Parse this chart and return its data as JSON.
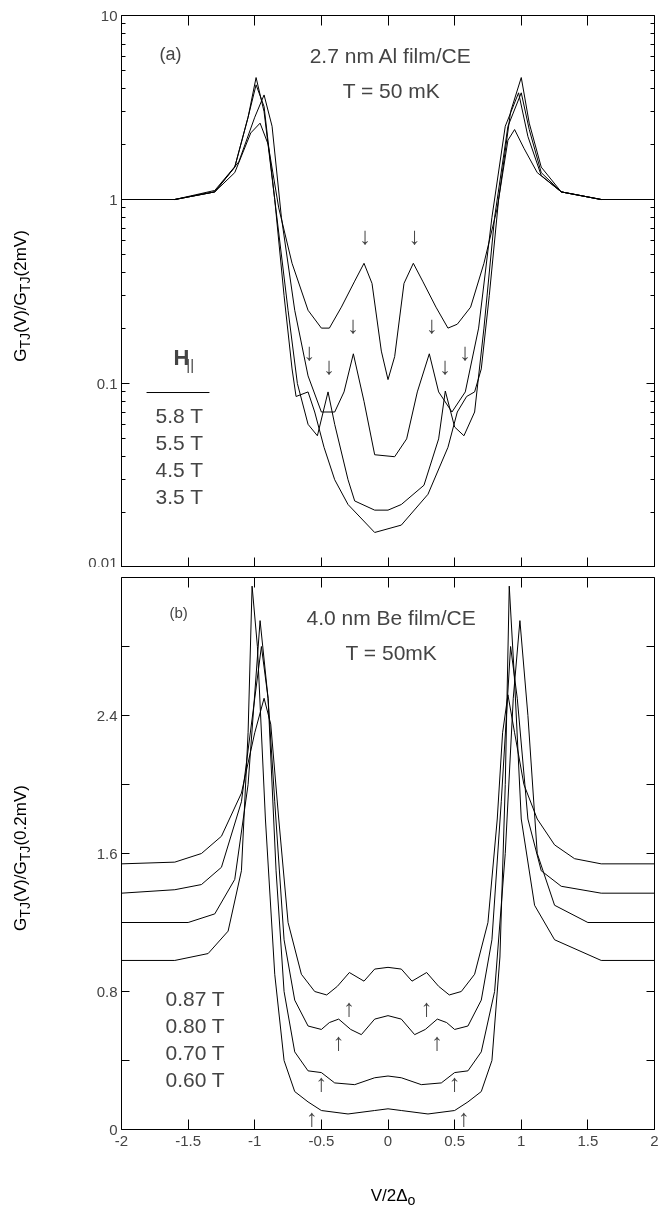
{
  "chart_data": [
    {
      "type": "line",
      "title": "2.7 nm Al film/CE",
      "subtitle": "T = 50 mK",
      "ylabel": "G$_{TJ}$(V)/G$_{TJ}$(2mV)",
      "log": "y",
      "grid": false,
      "tick_labels": "y",
      "marker": "none",
      "line_style": "solid",
      "xlim": [
        -2,
        2
      ],
      "xticks": [
        -2,
        -1.5,
        -1,
        -0.5,
        0,
        0.5,
        1,
        1.5,
        2
      ],
      "ylim": [
        0.01,
        10
      ],
      "yticks": [
        0.01,
        0.1,
        1,
        10
      ],
      "series": [
        {
          "color": "#000000",
          "x": [
            -2,
            -1.6,
            -1.3,
            -1.15,
            -1.03,
            -0.96,
            -0.9,
            -0.82,
            -0.72,
            -0.6,
            -0.5,
            -0.44,
            -0.35,
            -0.25,
            -0.18,
            -0.12,
            -0.05,
            0,
            0.05,
            0.12,
            0.19,
            0.26,
            0.36,
            0.45,
            0.52,
            0.62,
            0.72,
            0.82,
            0.9,
            0.95,
            1.02,
            1.12,
            1.3,
            1.6,
            2
          ],
          "values": [
            1,
            1,
            1.1,
            1.4,
            2.3,
            2.6,
            2.0,
            0.9,
            0.45,
            0.25,
            0.2,
            0.2,
            0.26,
            0.36,
            0.45,
            0.35,
            0.15,
            0.105,
            0.14,
            0.35,
            0.45,
            0.36,
            0.26,
            0.2,
            0.21,
            0.26,
            0.45,
            0.9,
            2.1,
            2.4,
            1.9,
            1.4,
            1.1,
            1,
            1
          ]
        },
        {
          "color": "#000000",
          "x": [
            -2,
            -1.6,
            -1.3,
            -1.12,
            -1.0,
            -0.93,
            -0.87,
            -0.8,
            -0.7,
            -0.6,
            -0.5,
            -0.4,
            -0.33,
            -0.26,
            -0.18,
            -0.1,
            0.05,
            0.14,
            0.22,
            0.31,
            0.38,
            0.48,
            0.58,
            0.68,
            0.78,
            0.88,
            0.98,
            1.05,
            1.15,
            1.3,
            1.6,
            2
          ],
          "values": [
            1,
            1,
            1.12,
            1.6,
            2.8,
            3.7,
            2.5,
            0.8,
            0.25,
            0.11,
            0.07,
            0.07,
            0.09,
            0.145,
            0.08,
            0.041,
            0.04,
            0.05,
            0.09,
            0.145,
            0.09,
            0.07,
            0.09,
            0.2,
            0.8,
            2.5,
            3.8,
            2.2,
            1.35,
            1.1,
            1,
            1
          ]
        },
        {
          "color": "#000000",
          "x": [
            -2,
            -1.6,
            -1.3,
            -1.15,
            -1.05,
            -0.99,
            -0.93,
            -0.85,
            -0.75,
            -0.68,
            -0.6,
            -0.53,
            -0.45,
            -0.4,
            -0.3,
            -0.25,
            -0.1,
            0,
            0.1,
            0.27,
            0.38,
            0.43,
            0.5,
            0.57,
            0.65,
            0.72,
            0.8,
            0.9,
            1.0,
            1.06,
            1.15,
            1.3,
            1.6,
            2
          ],
          "values": [
            1,
            1,
            1.1,
            1.5,
            2.8,
            4.2,
            3.2,
            1.0,
            0.25,
            0.1,
            0.06,
            0.052,
            0.09,
            0.06,
            0.03,
            0.023,
            0.0205,
            0.0205,
            0.022,
            0.028,
            0.05,
            0.091,
            0.058,
            0.052,
            0.07,
            0.2,
            0.8,
            2.5,
            3.8,
            2.4,
            1.4,
            1.1,
            1,
            1
          ]
        },
        {
          "color": "#000000",
          "x": [
            -2,
            -1.6,
            -1.3,
            -1.15,
            -1.05,
            -0.99,
            -0.93,
            -0.85,
            -0.78,
            -0.72,
            -0.69,
            -0.6,
            -0.55,
            -0.48,
            -0.4,
            -0.3,
            -0.1,
            0.1,
            0.3,
            0.45,
            0.52,
            0.59,
            0.65,
            0.7,
            0.76,
            0.83,
            0.92,
            1.0,
            1.06,
            1.15,
            1.3,
            1.6,
            2
          ],
          "values": [
            1,
            1,
            1.1,
            1.5,
            2.8,
            4.6,
            3.0,
            1.0,
            0.3,
            0.12,
            0.085,
            0.09,
            0.07,
            0.045,
            0.03,
            0.022,
            0.0155,
            0.017,
            0.025,
            0.045,
            0.07,
            0.085,
            0.09,
            0.12,
            0.3,
            1.0,
            3.0,
            4.6,
            2.6,
            1.5,
            1.1,
            1,
            1
          ]
        }
      ],
      "annotations": [
        "(a)",
        "H$_{||}$",
        "5.8 T",
        "5.5 T",
        "4.5 T",
        "3.5 T",
        "↓",
        "↓",
        "↓",
        "↓",
        "↓",
        "↓",
        "↓",
        "↓"
      ]
    },
    {
      "type": "line",
      "title": "4.0 nm Be film/CE",
      "subtitle": "T = 50mK",
      "xlabel": "V/2Δ$_{o}$",
      "ylabel": "G$_{TJ}$(V)/G$_{TJ}$(0.2mV)",
      "grid": false,
      "marker": "none",
      "line_style": "solid",
      "xlim": [
        -2,
        2
      ],
      "xticks": [
        -2,
        -1.5,
        -1,
        -0.5,
        0,
        0.5,
        1,
        1.5,
        2
      ],
      "ylim": [
        0,
        3.2
      ],
      "yticks": [
        0,
        {
          "value": 0.4,
          "label": null
        },
        0.8,
        {
          "value": 1.2,
          "label": null
        },
        1.6,
        {
          "value": 2.0,
          "label": null
        },
        2.4,
        {
          "value": 2.8,
          "label": null
        }
      ],
      "series": [
        {
          "color": "#000000",
          "x": [
            -2,
            -1.6,
            -1.4,
            -1.25,
            -1.1,
            -1.0,
            -0.93,
            -0.88,
            -0.82,
            -0.75,
            -0.65,
            -0.55,
            -0.46,
            -0.38,
            -0.29,
            -0.18,
            -0.1,
            0,
            0.1,
            0.18,
            0.29,
            0.38,
            0.46,
            0.55,
            0.65,
            0.75,
            0.82,
            0.86,
            0.9,
            0.95,
            1.02,
            1.12,
            1.25,
            1.4,
            1.6,
            2
          ],
          "values": [
            1.54,
            1.55,
            1.6,
            1.7,
            1.95,
            2.3,
            2.5,
            2.35,
            1.8,
            1.2,
            0.9,
            0.8,
            0.78,
            0.83,
            0.91,
            0.86,
            0.93,
            0.94,
            0.93,
            0.86,
            0.91,
            0.83,
            0.78,
            0.8,
            0.9,
            1.2,
            1.8,
            2.3,
            2.52,
            2.3,
            2.0,
            1.8,
            1.65,
            1.57,
            1.54,
            1.54
          ]
        },
        {
          "color": "#000000",
          "x": [
            -2,
            -1.6,
            -1.4,
            -1.25,
            -1.1,
            -1.0,
            -0.95,
            -0.9,
            -0.85,
            -0.78,
            -0.7,
            -0.6,
            -0.5,
            -0.44,
            -0.37,
            -0.28,
            -0.2,
            -0.1,
            0,
            0.1,
            0.2,
            0.28,
            0.37,
            0.44,
            0.5,
            0.6,
            0.7,
            0.78,
            0.85,
            0.92,
            0.97,
            1.05,
            1.15,
            1.3,
            1.6,
            2
          ],
          "values": [
            1.37,
            1.39,
            1.42,
            1.52,
            1.9,
            2.5,
            2.8,
            2.5,
            1.9,
            1.1,
            0.75,
            0.6,
            0.58,
            0.62,
            0.64,
            0.58,
            0.55,
            0.64,
            0.66,
            0.64,
            0.55,
            0.58,
            0.64,
            0.62,
            0.58,
            0.6,
            0.75,
            1.1,
            1.9,
            2.8,
            2.5,
            1.8,
            1.5,
            1.41,
            1.37,
            1.37
          ]
        },
        {
          "color": "#000000",
          "x": [
            -2,
            -1.5,
            -1.3,
            -1.15,
            -1.05,
            -0.96,
            -0.9,
            -0.84,
            -0.78,
            -0.7,
            -0.6,
            -0.5,
            -0.4,
            -0.25,
            -0.1,
            0,
            0.1,
            0.25,
            0.4,
            0.5,
            0.6,
            0.7,
            0.8,
            0.88,
            0.94,
            0.99,
            1.05,
            1.12,
            1.25,
            1.5,
            2
          ],
          "values": [
            1.2,
            1.2,
            1.25,
            1.45,
            2.0,
            2.95,
            2.5,
            1.5,
            0.8,
            0.45,
            0.34,
            0.33,
            0.27,
            0.26,
            0.3,
            0.31,
            0.3,
            0.26,
            0.27,
            0.33,
            0.34,
            0.45,
            0.8,
            1.6,
            2.5,
            2.95,
            2.4,
            1.6,
            1.3,
            1.2,
            1.2
          ]
        },
        {
          "color": "#000000",
          "x": [
            -2,
            -1.6,
            -1.35,
            -1.2,
            -1.1,
            -1.05,
            -1.02,
            -0.98,
            -0.92,
            -0.85,
            -0.78,
            -0.7,
            -0.6,
            -0.5,
            -0.3,
            -0.1,
            0,
            0.1,
            0.3,
            0.5,
            0.6,
            0.7,
            0.78,
            0.84,
            0.88,
            0.91,
            0.95,
            1.0,
            1.1,
            1.25,
            1.6,
            2
          ],
          "values": [
            0.98,
            0.98,
            1.02,
            1.15,
            1.5,
            2.3,
            3.15,
            2.8,
            1.8,
            0.9,
            0.4,
            0.22,
            0.16,
            0.11,
            0.09,
            0.11,
            0.12,
            0.11,
            0.09,
            0.11,
            0.16,
            0.22,
            0.4,
            1.0,
            2.0,
            3.15,
            2.6,
            1.8,
            1.3,
            1.1,
            0.98,
            0.98
          ]
        }
      ],
      "annotations": [
        "(b)",
        "0.87 T",
        "0.80 T",
        "0.70 T",
        "0.60 T",
        "↑",
        "↑",
        "↑",
        "↑",
        "↑",
        "↑",
        "↑",
        "↑"
      ]
    }
  ]
}
